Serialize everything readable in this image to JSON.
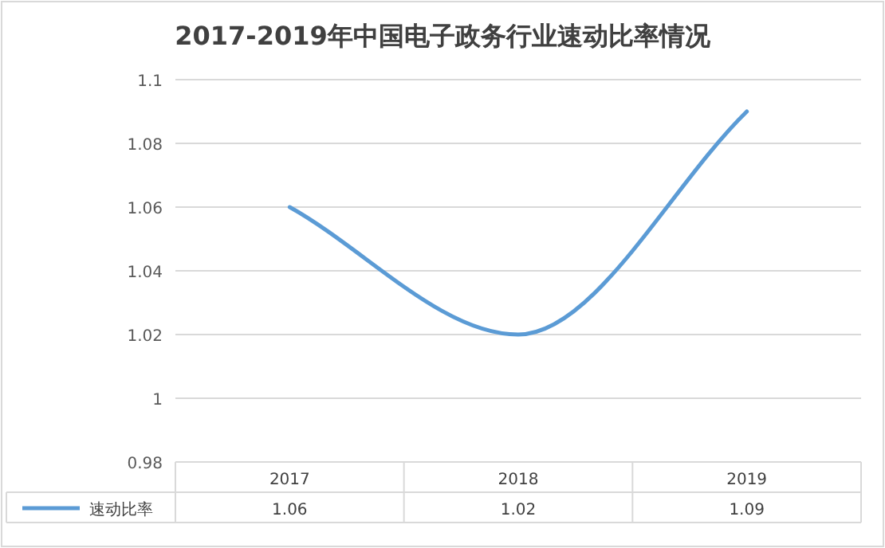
{
  "chart_data": {
    "type": "line",
    "title": "2017-2019年中国电子政务行业速动比率情况",
    "categories": [
      "2017",
      "2018",
      "2019"
    ],
    "series": [
      {
        "name": "速动比率",
        "color": "#5b9bd5",
        "values": [
          1.06,
          1.02,
          1.09
        ]
      }
    ],
    "ylim": [
      0.98,
      1.1
    ],
    "yticks": [
      0.98,
      1,
      1.02,
      1.04,
      1.06,
      1.08,
      1.1
    ],
    "grid": "y",
    "legend": "bottom",
    "data_labels": true
  }
}
